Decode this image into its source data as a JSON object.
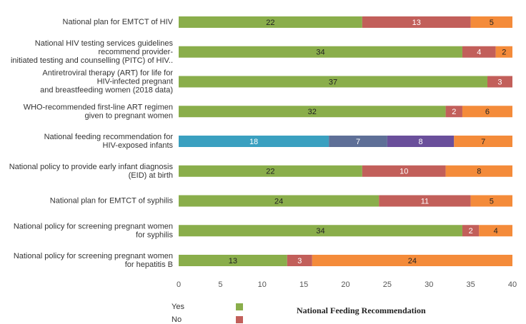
{
  "chart_data": {
    "type": "stacked_barh",
    "categories": [
      "National plan for EMTCT of HIV",
      "National HIV testing services guidelines\nrecommend provider-\ninitiated testing and counselling (PITC) of HIV..",
      "Antiretroviral therapy (ART) for life for\nHIV-infected pregnant\nand breastfeeding women (2018 data)",
      "WHO-recommended first-line ART regimen\ngiven to pregnant women",
      "National feeding recommendation for\nHIV-exposed infants",
      "National policy to provide early infant diagnosis\n(EID) at birth",
      "National plan for EMTCT of syphilis",
      "National policy for screening pregnant women\nfor syphilis",
      "National policy for screening pregnant women\nfor hepatitis B"
    ],
    "series": [
      {
        "name": "Yes",
        "color": "#8aae4b",
        "label_color": "#222222",
        "values": [
          22,
          34,
          37,
          32,
          null,
          22,
          24,
          34,
          13
        ]
      },
      {
        "name": "No",
        "color": "#c25f5a",
        "label_color": "#ffffff",
        "values": [
          13,
          4,
          3,
          2,
          null,
          10,
          11,
          2,
          3
        ]
      },
      {
        "color": "#3aa0c0",
        "label_color": "#ffffff",
        "values": [
          null,
          null,
          null,
          null,
          18,
          null,
          null,
          null,
          null
        ]
      },
      {
        "color": "#5e6f97",
        "label_color": "#ffffff",
        "values": [
          null,
          null,
          null,
          null,
          7,
          null,
          null,
          null,
          null
        ]
      },
      {
        "color": "#6a4f9b",
        "label_color": "#ffffff",
        "values": [
          null,
          null,
          null,
          null,
          8,
          null,
          null,
          null,
          null
        ]
      },
      {
        "color": "#f48b3a",
        "label_color": "#222222",
        "values": [
          5,
          2,
          null,
          6,
          7,
          8,
          5,
          4,
          24
        ]
      }
    ],
    "xlim": [
      0,
      41
    ],
    "xticks": [
      0,
      5,
      10,
      15,
      20,
      25,
      30,
      35,
      40
    ],
    "feeding_legend_title": "National Feeding Recommendation"
  }
}
